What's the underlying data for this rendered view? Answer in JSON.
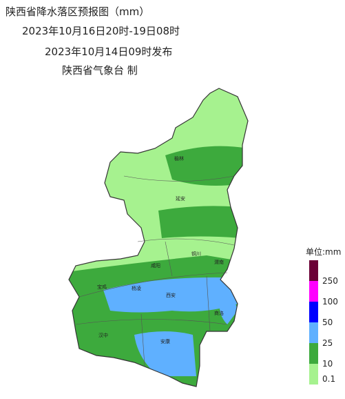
{
  "header": {
    "title": "陕西省降水落区预报图（mm）",
    "period": "2023年10月16日20时-19日08时",
    "issued": "2023年10月14日09时发布",
    "issuer": "陕西省气象台 制"
  },
  "legend": {
    "title": "单位:mm",
    "colors": [
      "#6b0036",
      "#ff00ff",
      "#0000ff",
      "#5fb0ff",
      "#3daa3d",
      "#a6f28f"
    ],
    "labels": [
      "250",
      "100",
      "50",
      "25",
      "10",
      "0.1"
    ]
  },
  "cities": [
    "榆林",
    "延安",
    "铜川",
    "渭南",
    "咸阳",
    "宝鸡",
    "杨凌",
    "西安",
    "商洛",
    "汉中",
    "安康"
  ]
}
